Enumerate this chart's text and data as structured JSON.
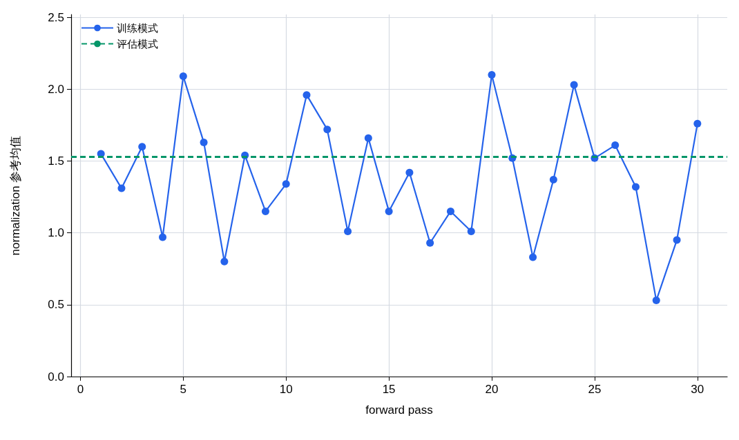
{
  "chart_data": {
    "type": "line",
    "xlabel": "forward pass",
    "ylabel": "normalization 参考均值",
    "x": [
      1,
      2,
      3,
      4,
      5,
      6,
      7,
      8,
      9,
      10,
      11,
      12,
      13,
      14,
      15,
      16,
      17,
      18,
      19,
      20,
      21,
      22,
      23,
      24,
      25,
      26,
      27,
      28,
      29,
      30
    ],
    "series": [
      {
        "name": "训练模式",
        "color": "#2563eb",
        "values": [
          1.55,
          1.31,
          1.6,
          0.97,
          2.09,
          1.63,
          0.8,
          1.54,
          1.15,
          1.34,
          1.96,
          1.72,
          1.01,
          1.66,
          1.15,
          1.42,
          0.93,
          1.15,
          1.01,
          2.1,
          1.52,
          0.83,
          1.37,
          2.03,
          1.52,
          1.61,
          1.32,
          0.53,
          0.95,
          1.76
        ]
      }
    ],
    "ref_lines": [
      {
        "axis": "y",
        "value": 1.53,
        "label": "评估模式",
        "color": "#059669",
        "line_style": "dashed"
      }
    ],
    "xlim": [
      -0.45,
      31.45
    ],
    "xticks": [
      0,
      5,
      10,
      15,
      20,
      25,
      30
    ],
    "ylim": [
      0,
      2.52
    ],
    "yticks": [
      {
        "value": 0,
        "label": "0.0"
      },
      0.5,
      {
        "value": 1,
        "label": "1.0"
      },
      1.5,
      {
        "value": 2,
        "label": "2.0"
      },
      2.5
    ],
    "grid": true,
    "legend": "top left",
    "marker": "circle",
    "line_style": "solid"
  }
}
